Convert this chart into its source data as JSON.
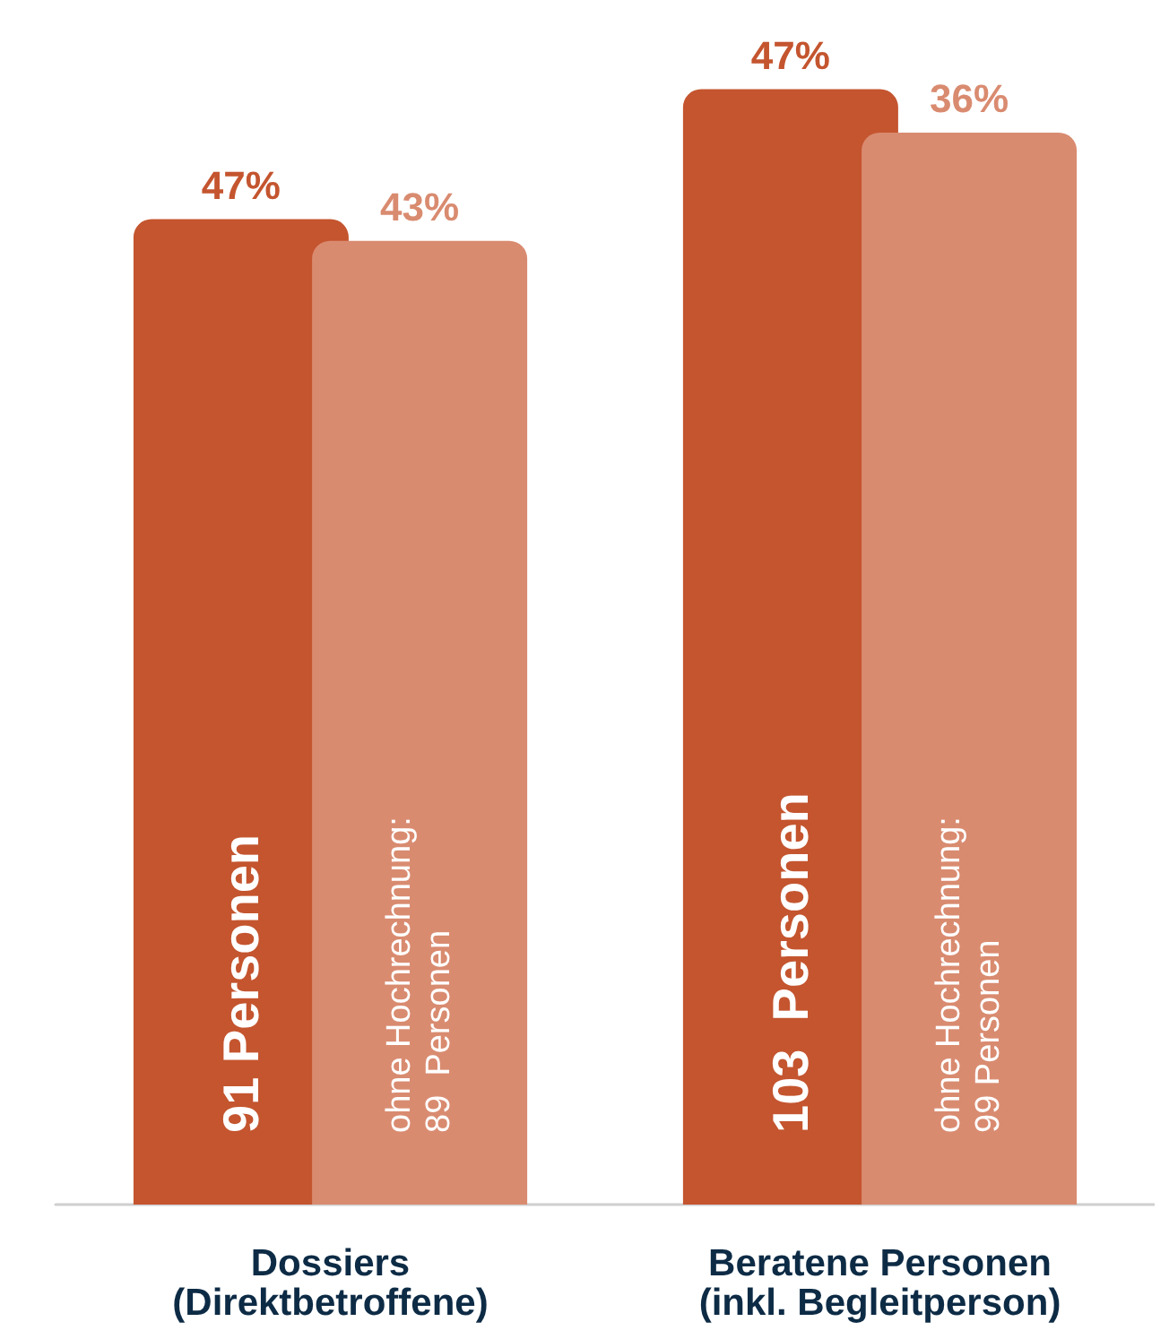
{
  "chart_data": {
    "type": "bar",
    "categories": [
      "Dossiers\n(Direktbetroffene)",
      "Beratene Personen\n(inkl. Begleitperson)"
    ],
    "series": [
      {
        "color": "#c4552f",
        "values": [
          91,
          103
        ],
        "value_labels": [
          "91 Personen",
          "103  Personen"
        ]
      },
      {
        "color": "#d98b70",
        "values": [
          89,
          99
        ],
        "value_labels": [
          "ohne Hochrechnung:\n89  Personen",
          "ohne Hochrechnung:\n99 Personen"
        ]
      }
    ],
    "annotations": [
      {
        "text": "47%",
        "x": "Dossiers\n(Direktbetroffene)",
        "y": 91
      },
      {
        "text": "43%",
        "x": "Dossiers\n(Direktbetroffene)",
        "y": 89
      },
      {
        "text": "47%",
        "x": "Beratene Personen\n(inkl. Begleitperson)",
        "y": 103
      },
      {
        "text": "36%",
        "x": "Beratene Personen\n(inkl. Begleitperson)",
        "y": 99
      }
    ],
    "grid": false
  }
}
